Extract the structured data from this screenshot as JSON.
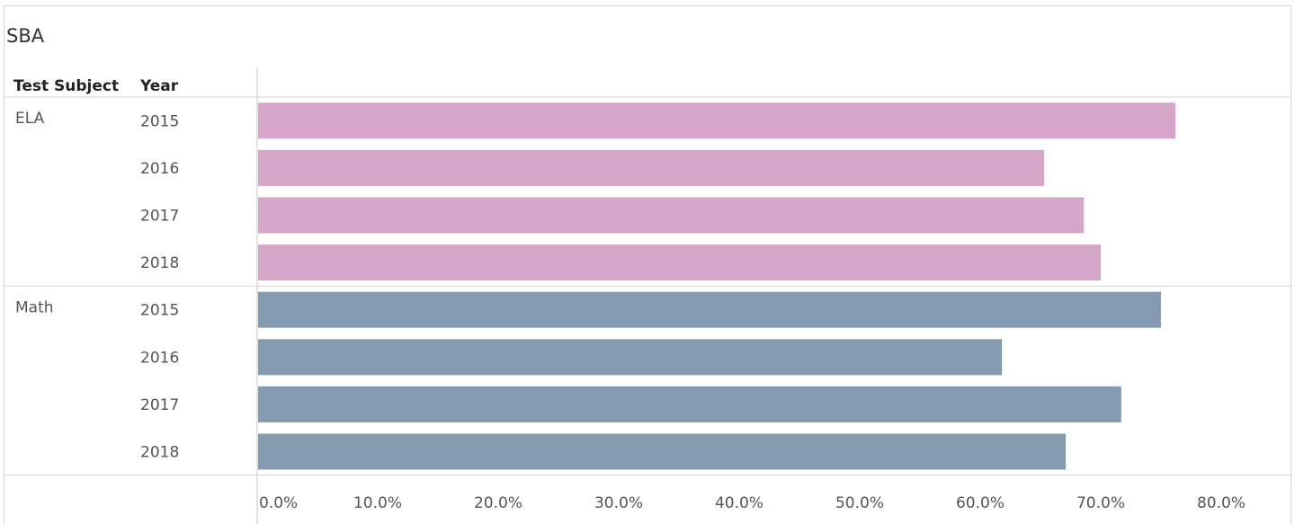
{
  "title": "SBA",
  "headers": {
    "subject": "Test Subject",
    "year": "Year"
  },
  "colors": {
    "ELA": "#d5a6c8",
    "Math": "#849bb1"
  },
  "chart_data": {
    "type": "bar",
    "orientation": "horizontal",
    "title": "SBA",
    "groups": [
      {
        "subject": "ELA",
        "rows": [
          {
            "year": "2015",
            "value": 76.2
          },
          {
            "year": "2016",
            "value": 65.3
          },
          {
            "year": "2017",
            "value": 68.6
          },
          {
            "year": "2018",
            "value": 70.0
          }
        ]
      },
      {
        "subject": "Math",
        "rows": [
          {
            "year": "2015",
            "value": 75.0
          },
          {
            "year": "2016",
            "value": 61.8
          },
          {
            "year": "2017",
            "value": 71.7
          },
          {
            "year": "2018",
            "value": 67.1
          }
        ]
      }
    ],
    "xlim": [
      0,
      80
    ],
    "xticks": [
      "0.0%",
      "10.0%",
      "20.0%",
      "30.0%",
      "40.0%",
      "50.0%",
      "60.0%",
      "70.0%",
      "80.0%"
    ],
    "grid": false,
    "legend": "none"
  }
}
